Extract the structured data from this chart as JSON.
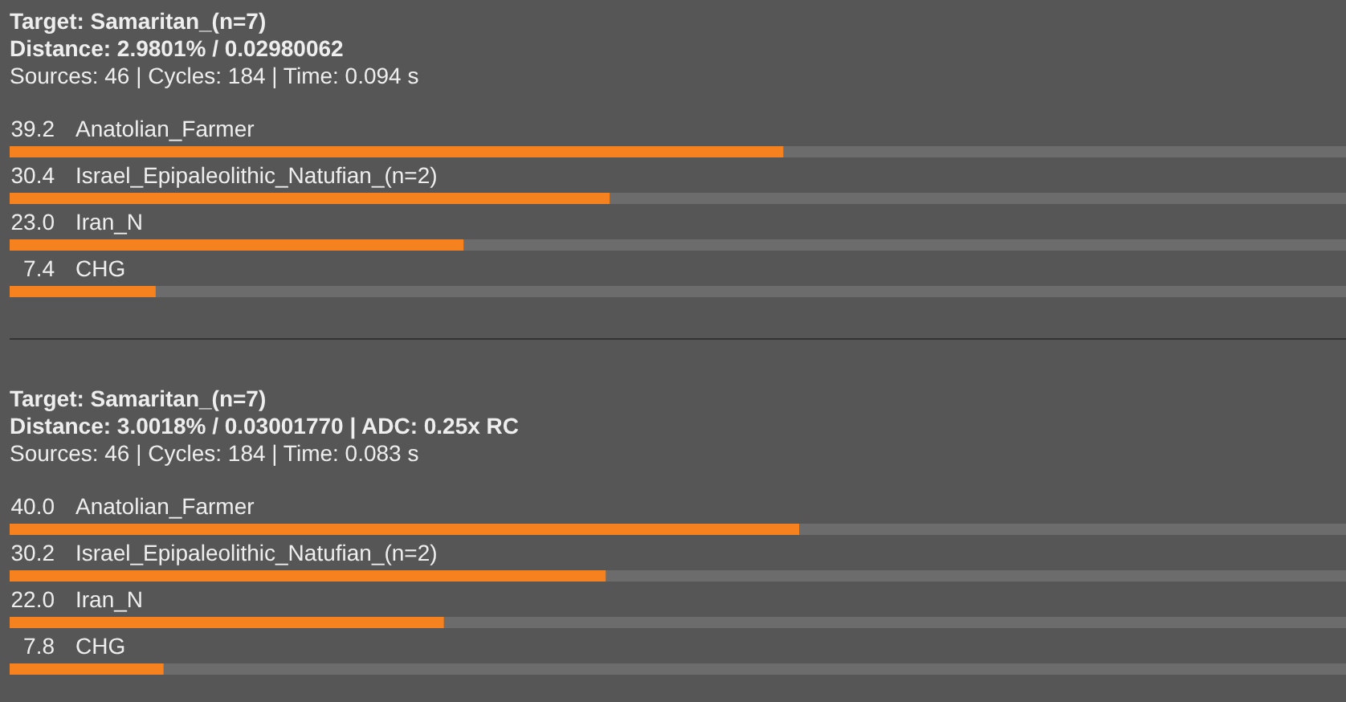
{
  "chart_data": [
    {
      "type": "bar",
      "orientation": "horizontal",
      "title": "Target: Samaritan_(n=7)",
      "subtitle": "Distance: 2.9801% / 0.02980062",
      "annotations": [
        "Sources: 46 | Cycles: 184 | Time: 0.094 s"
      ],
      "categories": [
        "Anatolian_Farmer",
        "Israel_Epipaleolithic_Natufian_(n=2)",
        "Iran_N",
        "CHG"
      ],
      "values": [
        39.2,
        30.4,
        23.0,
        7.4
      ],
      "value_labels": [
        "39.2",
        "30.4",
        "23.0",
        "7.4"
      ],
      "color": "#f5821f",
      "xlim": [
        0,
        67.7
      ],
      "tick_labels": false
    },
    {
      "type": "bar",
      "orientation": "horizontal",
      "title": "Target: Samaritan_(n=7)",
      "subtitle": "Distance: 3.0018% / 0.03001770 | ADC: 0.25x RC",
      "annotations": [
        "Sources: 46 | Cycles: 184 | Time: 0.083 s"
      ],
      "categories": [
        "Anatolian_Farmer",
        "Israel_Epipaleolithic_Natufian_(n=2)",
        "Iran_N",
        "CHG"
      ],
      "values": [
        40.0,
        30.2,
        22.0,
        7.8
      ],
      "value_labels": [
        "40.0",
        "30.2",
        "22.0",
        "7.8"
      ],
      "color": "#f5821f",
      "xlim": [
        0,
        67.7
      ],
      "tick_labels": false
    }
  ]
}
